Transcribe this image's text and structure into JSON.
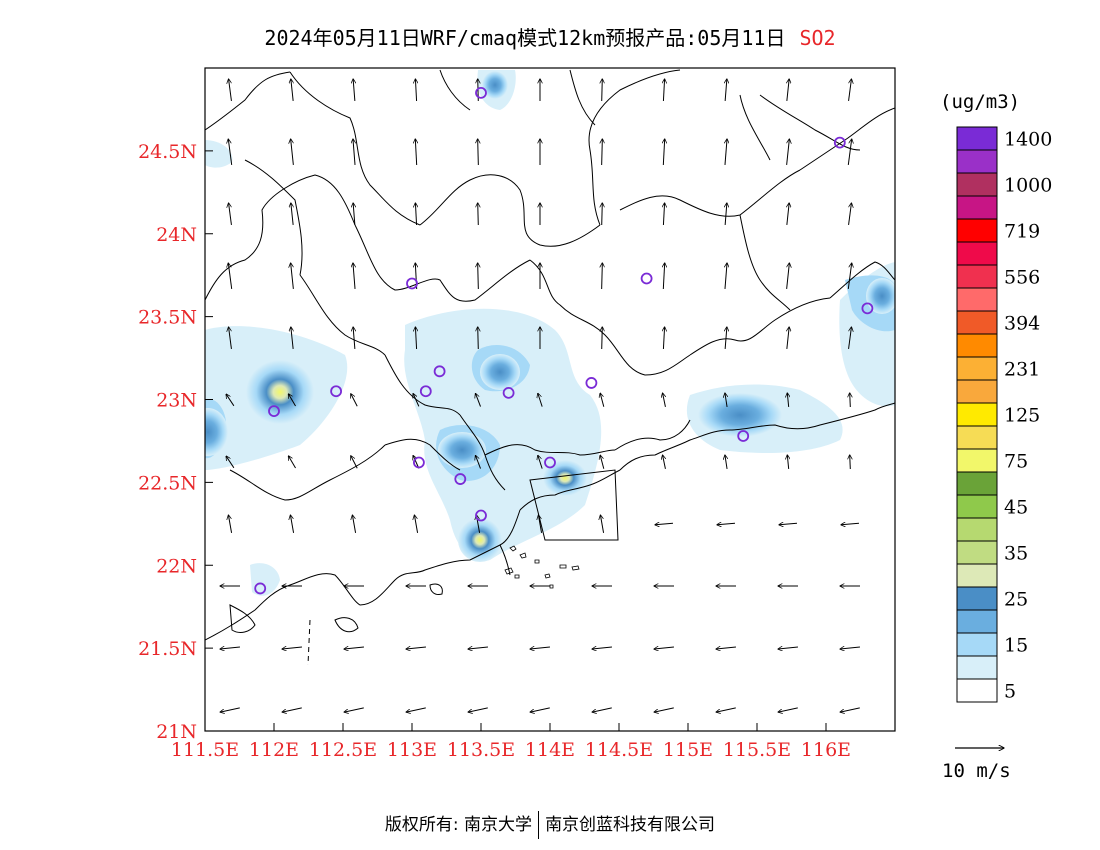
{
  "title": {
    "main": "2024年05月11日WRF/cmaq模式12km预报产品:05月11日",
    "pollutant": "SO2"
  },
  "footer": {
    "copyright": "版权所有: 南京大学",
    "company": "南京创蓝科技有限公司"
  },
  "map": {
    "lat_labels": [
      "24.5N",
      "24N",
      "23.5N",
      "23N",
      "22.5N",
      "22N",
      "21.5N",
      "21N"
    ],
    "lat_values": [
      24.5,
      24,
      23.5,
      23,
      22.5,
      22,
      21.5,
      21
    ],
    "lon_labels": [
      "111.5E",
      "112E",
      "112.5E",
      "113E",
      "113.5E",
      "114E",
      "114.5E",
      "115E",
      "115.5E",
      "116E"
    ],
    "lon_values": [
      111.5,
      112,
      112.5,
      113,
      113.5,
      114,
      114.5,
      115,
      115.5,
      116
    ],
    "lon_range": [
      111.5,
      116.5
    ],
    "lat_range": [
      21,
      25
    ],
    "stations": [
      {
        "lon": 113.5,
        "lat": 24.85
      },
      {
        "lon": 116.1,
        "lat": 24.55
      },
      {
        "lon": 113.0,
        "lat": 23.7
      },
      {
        "lon": 114.7,
        "lat": 23.73
      },
      {
        "lon": 116.3,
        "lat": 23.55
      },
      {
        "lon": 113.2,
        "lat": 23.17
      },
      {
        "lon": 113.1,
        "lat": 23.05
      },
      {
        "lon": 112.45,
        "lat": 23.05
      },
      {
        "lon": 112.0,
        "lat": 22.93
      },
      {
        "lon": 113.7,
        "lat": 23.04
      },
      {
        "lon": 114.3,
        "lat": 23.1
      },
      {
        "lon": 115.4,
        "lat": 22.78
      },
      {
        "lon": 113.05,
        "lat": 22.62
      },
      {
        "lon": 113.35,
        "lat": 22.52
      },
      {
        "lon": 114.0,
        "lat": 22.62
      },
      {
        "lon": 113.5,
        "lat": 22.3
      },
      {
        "lon": 111.9,
        "lat": 21.86
      }
    ]
  },
  "legend": {
    "unit": "(ug/m3)",
    "colors": [
      "#ffffff",
      "#d8eff9",
      "#a6d9f7",
      "#6aaedf",
      "#4a8ec6",
      "#dde9b7",
      "#c0dc82",
      "#b6d970",
      "#8fc94b",
      "#6aa338",
      "#f2f76a",
      "#f6dc55",
      "#ffea00",
      "#f9a83c",
      "#fcb034",
      "#ff8a00",
      "#f05a28",
      "#ff6a6a",
      "#f0304f",
      "#ef0a4a",
      "#ff0000",
      "#c71585",
      "#b03060",
      "#9a30c8",
      "#7a2bd6"
    ],
    "labels": [
      "5",
      "15",
      "25",
      "35",
      "45",
      "75",
      "125",
      "231",
      "394",
      "556",
      "719",
      "1000",
      "1400"
    ]
  },
  "wind": {
    "ref_label": "10 m/s"
  }
}
